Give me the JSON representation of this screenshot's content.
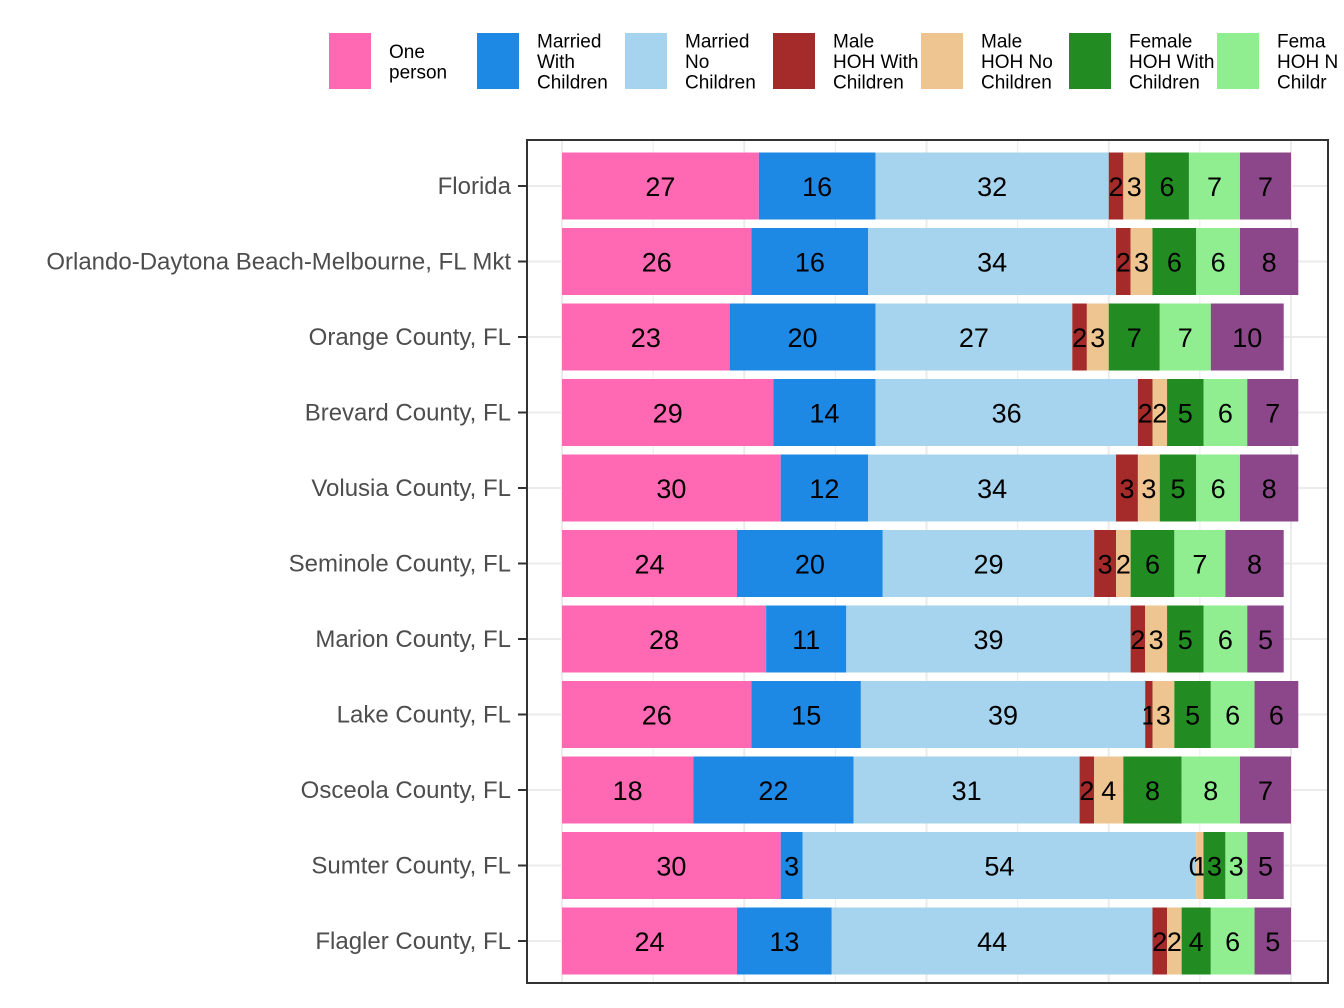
{
  "chart_data": {
    "type": "bar",
    "orientation": "horizontal",
    "stacked": true,
    "title": "",
    "xlabel": "",
    "ylabel": "",
    "xlim": [
      0,
      100
    ],
    "grid": true,
    "legend_position": "top",
    "categories": [
      "Florida",
      "Orlando-Daytona Beach-Melbourne, FL Mkt",
      "Orange County, FL",
      "Brevard County, FL",
      "Volusia County, FL",
      "Seminole County, FL",
      "Marion County, FL",
      "Lake County, FL",
      "Osceola County, FL",
      "Sumter County, FL",
      "Flagler County, FL"
    ],
    "series": [
      {
        "name": "One person",
        "legend_lines": [
          "One",
          "person"
        ],
        "color": "#FF69B4",
        "values": [
          27,
          26,
          23,
          29,
          30,
          24,
          28,
          26,
          18,
          30,
          24
        ]
      },
      {
        "name": "Married With Children",
        "legend_lines": [
          "Married",
          "With",
          "Children"
        ],
        "color": "#1E88E5",
        "values": [
          16,
          16,
          20,
          14,
          12,
          20,
          11,
          15,
          22,
          3,
          13
        ]
      },
      {
        "name": "Married No Children",
        "legend_lines": [
          "Married",
          "No",
          "Children"
        ],
        "color": "#A6D3EE",
        "values": [
          32,
          34,
          27,
          36,
          34,
          29,
          39,
          39,
          31,
          54,
          44
        ]
      },
      {
        "name": "Male HOH With Children",
        "legend_lines": [
          "Male",
          "HOH With",
          "Children"
        ],
        "color": "#A52A2A",
        "values": [
          2,
          2,
          2,
          2,
          3,
          3,
          2,
          1,
          2,
          0,
          2
        ]
      },
      {
        "name": "Male HOH No Children",
        "legend_lines": [
          "Male",
          "HOH No",
          "Children"
        ],
        "color": "#EEC591",
        "values": [
          3,
          3,
          3,
          2,
          3,
          2,
          3,
          3,
          4,
          1,
          2
        ]
      },
      {
        "name": "Female HOH With Children",
        "legend_lines": [
          "Female",
          "HOH With",
          "Children"
        ],
        "color": "#228B22",
        "values": [
          6,
          6,
          7,
          5,
          5,
          6,
          5,
          5,
          8,
          3,
          4
        ]
      },
      {
        "name": "Female HOH No Children",
        "legend_lines": [
          "Fema",
          "HOH N",
          "Childr"
        ],
        "color": "#90EE90",
        "values": [
          7,
          6,
          7,
          6,
          6,
          7,
          6,
          6,
          8,
          3,
          6
        ]
      },
      {
        "name": "",
        "legend_lines": [],
        "color": "#8B4789",
        "values": [
          7,
          8,
          10,
          7,
          8,
          8,
          5,
          6,
          7,
          5,
          5
        ]
      }
    ]
  }
}
